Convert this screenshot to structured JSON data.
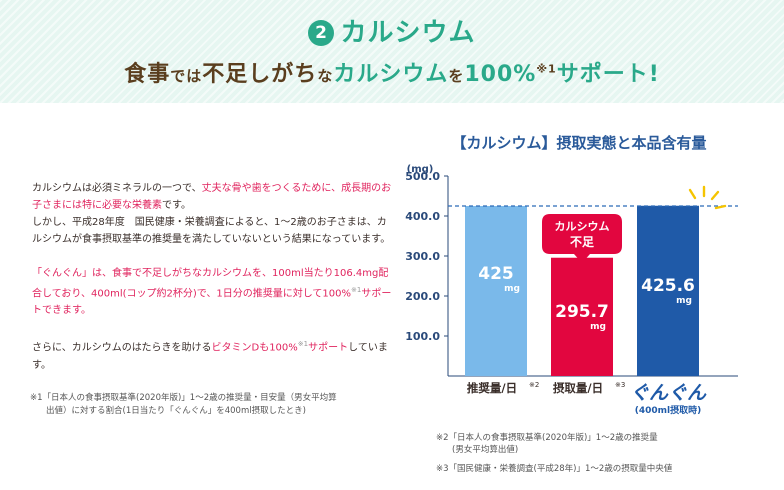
{
  "header": {
    "badge_number": "2",
    "title": "カルシウム",
    "subtitle_parts": [
      "食事",
      "では",
      "不足しがち",
      "な",
      "カルシウム",
      "を",
      "100%",
      "※1",
      "サポート!"
    ]
  },
  "body": {
    "p1": [
      {
        "t": "カルシウムは必須ミネラルの一つで、",
        "c": "n"
      },
      {
        "t": "丈夫な骨や歯をつくるために、成長期のお子さまには特に必要な栄養素",
        "c": "p"
      },
      {
        "t": "です。",
        "c": "n"
      },
      {
        "t": "\nしかし、平成28年度　国民健康・栄養調査によると、1〜2歳のお子さまは、カルシウムが食事摂取基準の推奨量を満たしていないという結果になっています。",
        "c": "n"
      }
    ],
    "p2": [
      {
        "t": "「ぐんぐん」は、",
        "c": "p"
      },
      {
        "t": "食事で不足しがちなカルシウムを、100ml当たり106.4mg配合しており、400ml(コップ約2杯分)で、1日分の推奨量に対して100%",
        "c": "p"
      },
      {
        "t": "※1",
        "c": "s"
      },
      {
        "t": "サポートできます。",
        "c": "p"
      }
    ],
    "p3": [
      {
        "t": "さらに、カルシウムのはたらきを助ける",
        "c": "n"
      },
      {
        "t": "ビタミンDも100%",
        "c": "p"
      },
      {
        "t": "※1",
        "c": "s"
      },
      {
        "t": "サポート",
        "c": "p"
      },
      {
        "t": "しています。",
        "c": "n"
      }
    ],
    "footnote1": "※1「日本人の食事摂取基準(2020年版)」1〜2歳の推奨量・目安量（男女平均算",
    "footnote1b": "出値）に対する割合(1日当たり「ぐんぐん」を400ml摂取したとき)"
  },
  "colors": {
    "teal": "#2aa98a",
    "brown": "#5a3e1e",
    "pink": "#e0245e",
    "bar_light_blue": "#7ab9ea",
    "bar_red": "#e2063f",
    "bar_navy": "#1f5aa8",
    "axis_text": "#2a4a7a"
  },
  "chart_data": {
    "type": "bar",
    "title": "【カルシウム】摂取実態と本品含有量",
    "ylabel": "(mg)",
    "ylim": [
      0,
      500
    ],
    "yticks": [
      "100.0",
      "200.0",
      "300.0",
      "400.0",
      "500.0"
    ],
    "ytick_values": [
      100,
      200,
      300,
      400,
      500
    ],
    "grid": false,
    "reference_line": 425,
    "categories": [
      "推奨量/日※2",
      "摂取量/日※3",
      "ぐんぐん"
    ],
    "category_labels": [
      {
        "main": "推奨量/日",
        "sup": "※2"
      },
      {
        "main": "摂取量/日",
        "sup": "※3"
      },
      {
        "main": "ぐんぐん",
        "sup": ""
      }
    ],
    "brand_sublabel": "(400ml摂取時)",
    "values": [
      425,
      295.7,
      425.6
    ],
    "value_labels": [
      "425",
      "295.7",
      "425.6"
    ],
    "unit_label": "mg",
    "bar_colors": [
      "#7ab9ea",
      "#e2063f",
      "#1f5aa8"
    ],
    "callout": {
      "line1": "カルシウム",
      "line2": "不足"
    }
  },
  "notes": {
    "n2": "※2「日本人の食事摂取基準(2020年版)」1〜2歳の推奨量",
    "n2b": "(男女平均算出値)",
    "n3": "※3「国民健康・栄養調査(平成28年)」1〜2歳の摂取量中央値"
  }
}
